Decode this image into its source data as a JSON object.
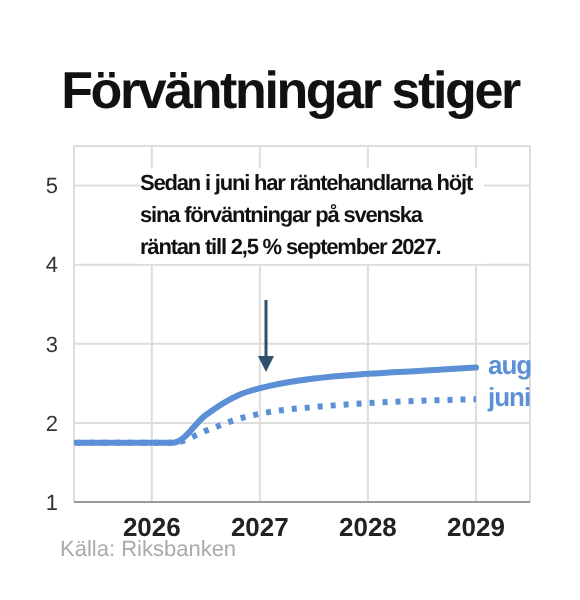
{
  "chart_data": {
    "type": "line",
    "title": "Förväntningar stiger",
    "x": [
      2025.8,
      2026.7,
      2027.0,
      2027.3,
      2027.6,
      2028.0,
      2028.5,
      2029.0,
      2029.5
    ],
    "series": [
      {
        "name": "aug",
        "color": "#5b8fd6",
        "values": [
          1.75,
          1.75,
          2.1,
          2.35,
          2.47,
          2.56,
          2.62,
          2.66,
          2.7
        ],
        "line_style": "solid"
      },
      {
        "name": "juni",
        "color": "#5b8fd6",
        "values": [
          1.75,
          1.75,
          1.9,
          2.05,
          2.14,
          2.2,
          2.25,
          2.28,
          2.3
        ],
        "line_style": "dotted"
      }
    ],
    "xlim": [
      2025.78,
      2030
    ],
    "xticks": [
      {
        "value": 2026.5,
        "label": "2026"
      },
      {
        "value": 2027.5,
        "label": "2027"
      },
      {
        "value": 2028.5,
        "label": "2028"
      },
      {
        "value": 2029.5,
        "label": "2029"
      }
    ],
    "ylim": [
      1,
      5.5
    ],
    "yticks": [
      1,
      2,
      3,
      4,
      5
    ],
    "grid": true,
    "marker": "none",
    "annotations": [
      "Sedan i juni har räntehandlarna höjt sina förväntningar på svenska räntan till 2,5 % september 2027.",
      "Källa: Riksbanken"
    ]
  }
}
